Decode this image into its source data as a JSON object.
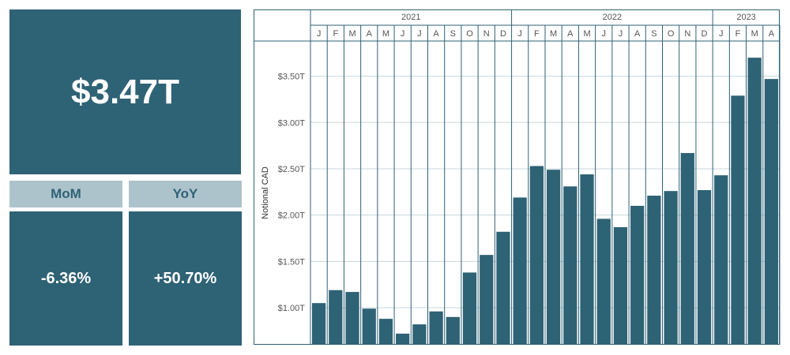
{
  "kpi": {
    "total": "$3.47T",
    "mom_label": "MoM",
    "yoy_label": "YoY",
    "mom_value": "-6.36%",
    "yoy_value": "+50.70%"
  },
  "colors": {
    "bar": "#2e6275",
    "header": "#adc3cc",
    "grid": "#c9d6dc",
    "text": "#555555"
  },
  "chart_data": {
    "type": "bar",
    "title": "",
    "xlabel": "",
    "ylabel": "Notional CAD",
    "years": [
      {
        "label": "2021",
        "months": 12
      },
      {
        "label": "2022",
        "months": 12
      },
      {
        "label": "2023",
        "months": 4
      }
    ],
    "categories": [
      "J",
      "F",
      "M",
      "A",
      "M",
      "J",
      "J",
      "A",
      "S",
      "O",
      "N",
      "D",
      "J",
      "F",
      "M",
      "A",
      "M",
      "J",
      "J",
      "A",
      "S",
      "O",
      "N",
      "D",
      "J",
      "F",
      "M",
      "A"
    ],
    "values": [
      1.05,
      1.19,
      1.17,
      0.99,
      0.88,
      0.72,
      0.82,
      0.96,
      0.9,
      1.38,
      1.57,
      1.82,
      2.19,
      2.53,
      2.49,
      2.31,
      2.44,
      1.96,
      1.87,
      2.1,
      2.21,
      2.26,
      2.67,
      2.27,
      2.43,
      3.29,
      3.7,
      3.47
    ],
    "y_ticks": [
      1.0,
      1.5,
      2.0,
      2.5,
      3.0,
      3.5
    ],
    "y_tick_labels": [
      "$1.00T",
      "$1.50T",
      "$2.00T",
      "$2.50T",
      "$3.00T",
      "$3.50T"
    ],
    "ylim": [
      0.6,
      3.88
    ],
    "unit": "T CAD",
    "grid": true
  }
}
